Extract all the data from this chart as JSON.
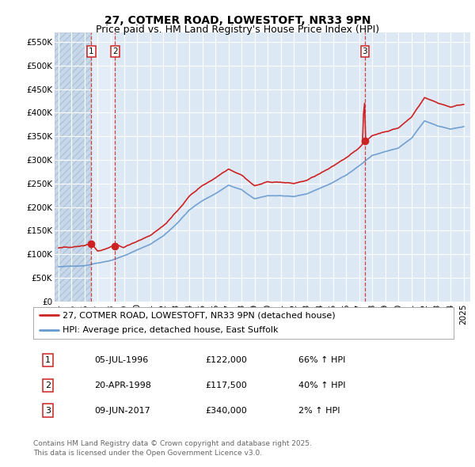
{
  "title": "27, COTMER ROAD, LOWESTOFT, NR33 9PN",
  "subtitle": "Price paid vs. HM Land Registry's House Price Index (HPI)",
  "ylabel_ticks": [
    "£0",
    "£50K",
    "£100K",
    "£150K",
    "£200K",
    "£250K",
    "£300K",
    "£350K",
    "£400K",
    "£450K",
    "£500K",
    "£550K"
  ],
  "ytick_values": [
    0,
    50000,
    100000,
    150000,
    200000,
    250000,
    300000,
    350000,
    400000,
    450000,
    500000,
    550000
  ],
  "ylim": [
    0,
    570000
  ],
  "xlim_start": 1993.7,
  "xlim_end": 2025.5,
  "hpi_color": "#6699cc",
  "price_color": "#cc2222",
  "background_color": "#dde8f5",
  "hatch_color": "#c8d8ea",
  "grid_color": "#ffffff",
  "highlight_color": "#ddeeff",
  "legend_label_price": "27, COTMER ROAD, LOWESTOFT, NR33 9PN (detached house)",
  "legend_label_hpi": "HPI: Average price, detached house, East Suffolk",
  "transaction_dates": [
    1996.51,
    1998.31,
    2017.44
  ],
  "transaction_prices": [
    122000,
    117500,
    340000
  ],
  "transaction_labels": [
    "1",
    "2",
    "3"
  ],
  "transaction_hpi_pct": [
    "66% ↑ HPI",
    "40% ↑ HPI",
    "2% ↑ HPI"
  ],
  "transaction_date_str": [
    "05-JUL-1996",
    "20-APR-1998",
    "09-JUN-2017"
  ],
  "transaction_price_str": [
    "£122,000",
    "£117,500",
    "£340,000"
  ],
  "footer": "Contains HM Land Registry data © Crown copyright and database right 2025.\nThis data is licensed under the Open Government Licence v3.0.",
  "title_fontsize": 10,
  "subtitle_fontsize": 9,
  "tick_fontsize": 7.5,
  "legend_fontsize": 8,
  "table_fontsize": 8,
  "footer_fontsize": 6.5
}
